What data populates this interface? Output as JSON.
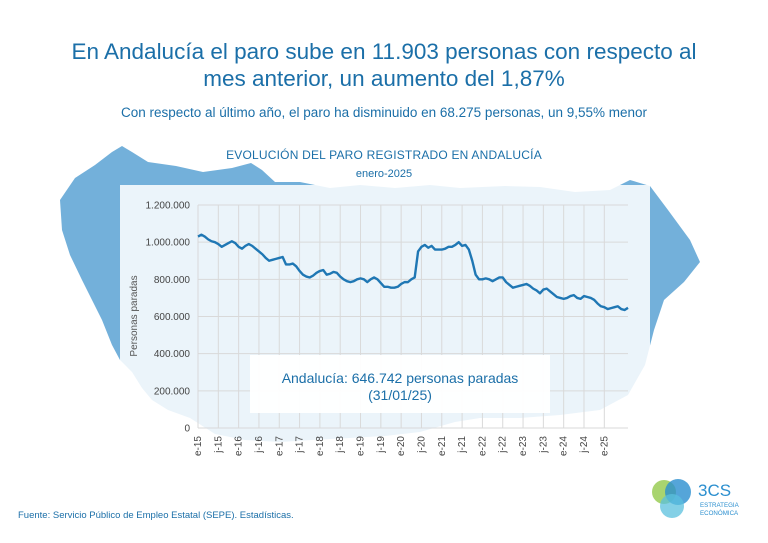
{
  "headline_line1": "En Andalucía el paro sube en 11.903 personas con respecto al",
  "headline_line2": "mes anterior, un aumento del 1,87%",
  "subheadline": "Con respecto al último año, el paro ha disminuido en 68.275 personas, un 9,55% menor",
  "source": "Fuente: Servicio Público de Empleo Estatal (SEPE). Estadísticas.",
  "callout_line1": "Andalucía: 646.742 personas paradas",
  "callout_line2": "(31/01/25)",
  "logo": {
    "mark": "3CS",
    "line1": "ESTRATEGIA",
    "line2": "ECONÓMICA"
  },
  "colors": {
    "accent": "#1b6fa8",
    "line": "#1f77b4",
    "map": "#5aa2d3"
  },
  "chart_data": {
    "type": "line",
    "title": "EVOLUCIÓN DEL PARO REGISTRADO EN ANDALUCÍA",
    "subtitle": "enero-2025",
    "ylabel": "Personas paradas",
    "xlabel": "",
    "ylim": [
      0,
      1200000
    ],
    "yticks": [
      0,
      200000,
      400000,
      600000,
      800000,
      1000000,
      1200000
    ],
    "ytick_labels": [
      "0",
      "200.000",
      "400.000",
      "600.000",
      "800.000",
      "1.000.000",
      "1.200.000"
    ],
    "grid": true,
    "x_start": "2015-01",
    "x_end": "2025-01",
    "xtick_labels": [
      "e-15",
      "j-15",
      "e-16",
      "j-16",
      "e-17",
      "j-17",
      "e-18",
      "j-18",
      "e-19",
      "j-19",
      "e-20",
      "j-20",
      "e-21",
      "j-21",
      "e-22",
      "j-22",
      "e-23",
      "j-23",
      "e-24",
      "j-24",
      "e-25"
    ],
    "series": [
      {
        "values": [
          1030000,
          1040000,
          1030000,
          1015000,
          1005000,
          1000000,
          990000,
          975000,
          985000,
          995000,
          1005000,
          995000,
          975000,
          965000,
          980000,
          990000,
          980000,
          965000,
          950000,
          935000,
          915000,
          900000,
          905000,
          910000,
          915000,
          920000,
          880000,
          880000,
          885000,
          870000,
          845000,
          825000,
          815000,
          810000,
          820000,
          835000,
          845000,
          850000,
          825000,
          830000,
          840000,
          835000,
          815000,
          800000,
          790000,
          785000,
          790000,
          800000,
          805000,
          800000,
          785000,
          800000,
          810000,
          800000,
          780000,
          760000,
          760000,
          755000,
          755000,
          760000,
          775000,
          785000,
          785000,
          800000,
          810000,
          950000,
          975000,
          985000,
          970000,
          980000,
          960000,
          960000,
          960000,
          965000,
          975000,
          975000,
          985000,
          1000000,
          980000,
          985000,
          960000,
          900000,
          825000,
          800000,
          800000,
          805000,
          800000,
          790000,
          800000,
          810000,
          810000,
          785000,
          770000,
          755000,
          760000,
          765000,
          770000,
          775000,
          765000,
          750000,
          740000,
          725000,
          745000,
          750000,
          735000,
          720000,
          705000,
          700000,
          695000,
          700000,
          710000,
          715000,
          700000,
          695000,
          710000,
          705000,
          700000,
          690000,
          670000,
          655000,
          650000,
          640000,
          645000,
          650000,
          655000,
          640000,
          635000,
          646742
        ]
      }
    ]
  }
}
